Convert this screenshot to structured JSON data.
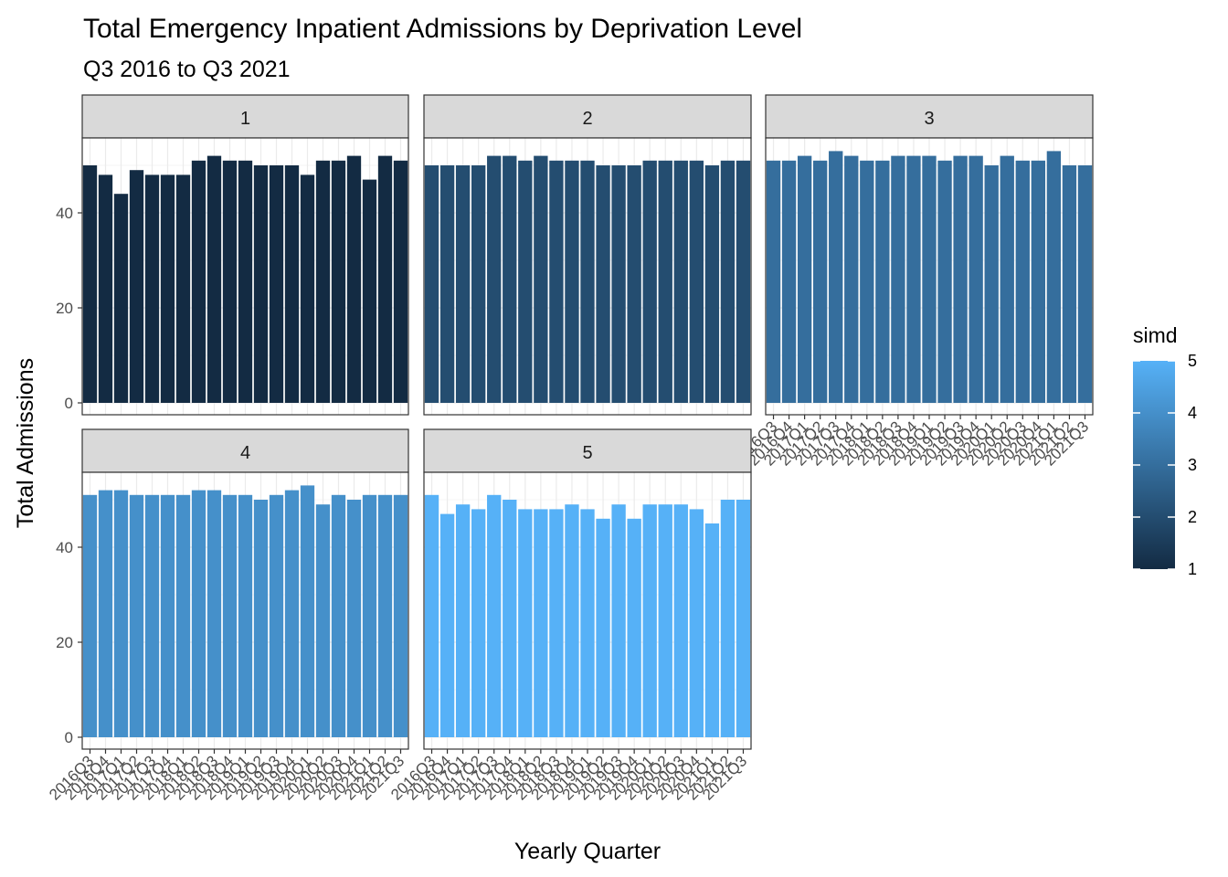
{
  "chart_data": {
    "type": "bar",
    "title": "Total Emergency Inpatient Admissions by Deprivation Level",
    "subtitle": "Q3 2016 to Q3 2021",
    "xlabel": "Yearly Quarter",
    "ylabel": "Total Admissions",
    "ylim": [
      0,
      56
    ],
    "yticks": [
      0,
      20,
      40
    ],
    "grid": true,
    "facet_by": "simd",
    "categories": [
      "2016Q3",
      "2016Q4",
      "2017Q1",
      "2017Q2",
      "2017Q3",
      "2017Q4",
      "2018Q1",
      "2018Q2",
      "2018Q3",
      "2018Q4",
      "2019Q1",
      "2019Q2",
      "2019Q3",
      "2019Q4",
      "2020Q1",
      "2020Q2",
      "2020Q3",
      "2020Q4",
      "2021Q1",
      "2021Q2",
      "2021Q3"
    ],
    "series": [
      {
        "name": "1",
        "simd": 1,
        "values": [
          50,
          48,
          44,
          49,
          48,
          48,
          48,
          51,
          52,
          51,
          51,
          50,
          50,
          50,
          48,
          51,
          51,
          52,
          47,
          52,
          51
        ]
      },
      {
        "name": "2",
        "simd": 2,
        "values": [
          50,
          50,
          50,
          50,
          52,
          52,
          51,
          52,
          51,
          51,
          51,
          50,
          50,
          50,
          51,
          51,
          51,
          51,
          50,
          51,
          51
        ]
      },
      {
        "name": "3",
        "simd": 3,
        "values": [
          51,
          51,
          52,
          51,
          53,
          52,
          51,
          51,
          52,
          52,
          52,
          51,
          52,
          52,
          50,
          52,
          51,
          51,
          53,
          50,
          50
        ]
      },
      {
        "name": "4",
        "simd": 4,
        "values": [
          51,
          52,
          52,
          51,
          51,
          51,
          51,
          52,
          52,
          51,
          51,
          50,
          51,
          52,
          53,
          49,
          51,
          50,
          51,
          51,
          51
        ]
      },
      {
        "name": "5",
        "simd": 5,
        "values": [
          51,
          47,
          49,
          48,
          51,
          50,
          48,
          48,
          48,
          49,
          48,
          46,
          49,
          46,
          49,
          49,
          49,
          48,
          45,
          50,
          50
        ]
      }
    ],
    "legend": {
      "title": "simd",
      "labels": [
        "5",
        "4",
        "3",
        "2",
        "1"
      ],
      "placement": "right",
      "low_color": "#132B43",
      "high_color": "#56B1F7"
    },
    "colors": {
      "strip_fill": "#D9D9D9",
      "panel_border": "#333333",
      "grid": "#EBEBEB"
    }
  }
}
